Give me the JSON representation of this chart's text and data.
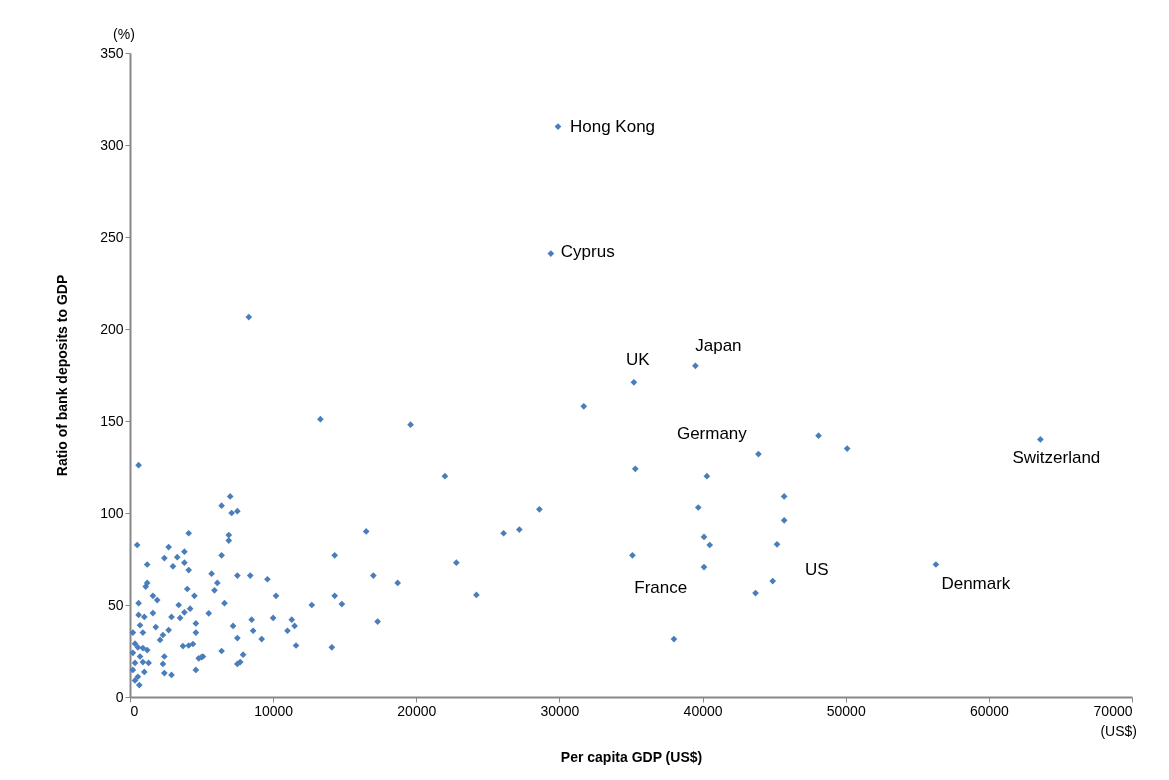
{
  "chart_data": {
    "type": "scatter",
    "xlabel": "Per capita GDP (US$)",
    "ylabel": "Ratio of bank deposits to GDP",
    "xlim": [
      0,
      70000
    ],
    "xticks": [
      0,
      10000,
      20000,
      30000,
      40000,
      50000,
      60000,
      70000
    ],
    "ylim": [
      0,
      350
    ],
    "yticks": [
      0,
      50,
      100,
      150,
      200,
      250,
      300,
      350
    ],
    "grid": false,
    "marker": "diamond",
    "series": [
      {
        "color": "#4a7ebb",
        "x": [
          29900,
          29400,
          35200,
          39500,
          40300,
          40500,
          45200,
          63600,
          56300,
          31700,
          35300,
          43900,
          48100,
          50100,
          45700,
          39700,
          45700,
          40100,
          35100,
          40100,
          44900,
          43700,
          38000,
          13300,
          19600,
          22000,
          28600,
          27200,
          26100,
          16500,
          14300,
          17000,
          18700,
          22800,
          24200,
          12700,
          14300,
          14800,
          17300,
          14100,
          7000,
          6400,
          7100,
          7500,
          6900,
          6900,
          6400,
          5700,
          7500,
          8400,
          9600,
          6100,
          5900,
          10200,
          6600,
          5500,
          7200,
          8500,
          10000,
          11300,
          11500,
          11000,
          8600,
          7500,
          9200,
          11600,
          6400,
          7900,
          7500,
          7700,
          5100,
          8300,
          600,
          500,
          1200,
          1100,
          1200,
          600,
          600,
          700,
          900,
          200,
          1600,
          1900,
          1000,
          1600,
          1800,
          2700,
          2400,
          3300,
          3800,
          3000,
          3800,
          4100,
          4100,
          4000,
          4500,
          3400,
          2900,
          3500,
          3800,
          4200,
          4600,
          4600,
          2300,
          2100,
          2700,
          3700,
          4100,
          4400,
          2400,
          2300,
          2400,
          2900,
          4600,
          4800,
          5000,
          350,
          550,
          900,
          200,
          700,
          1200,
          350,
          900,
          1300,
          200,
          1000,
          550,
          650,
          350
        ],
        "values": [
          310,
          241,
          171,
          180,
          120,
          82.6,
          83,
          140,
          72,
          158,
          124,
          132,
          142,
          135,
          109,
          103,
          96,
          87,
          77,
          70.6,
          63,
          56.5,
          31.5,
          151,
          148,
          120,
          102,
          91,
          89,
          90,
          77,
          66,
          62,
          73,
          55.5,
          50,
          55,
          50.5,
          41,
          27,
          109,
          104,
          100,
          101,
          88,
          85,
          77,
          67,
          66,
          66,
          64,
          62,
          58,
          55,
          51,
          45.5,
          38.6,
          42,
          43,
          42,
          38.6,
          36,
          36,
          32,
          31.5,
          28,
          25,
          23,
          18,
          19,
          22,
          206.5,
          126,
          82.6,
          72,
          60,
          62,
          51,
          44.6,
          39,
          35,
          35,
          55,
          52.7,
          43.5,
          45.6,
          38,
          81.5,
          75.5,
          76,
          79,
          71,
          73,
          89,
          69,
          58.7,
          55,
          50,
          43.5,
          43,
          46,
          48,
          40,
          35,
          33.7,
          31,
          36.4,
          27.7,
          28,
          28.8,
          22,
          18,
          13,
          12,
          14.7,
          21,
          21.7,
          29,
          27,
          26.6,
          24,
          22,
          25.5,
          18.5,
          19,
          18.5,
          14.7,
          13.6,
          11,
          6.5,
          9
        ]
      }
    ],
    "annotations": [
      {
        "text": "Hong Kong",
        "x": 29900,
        "y": 310
      },
      {
        "text": "Cyprus",
        "x": 29400,
        "y": 241
      },
      {
        "text": "UK",
        "x": 35200,
        "y": 171
      },
      {
        "text": "Japan",
        "x": 39500,
        "y": 180
      },
      {
        "text": "Germany",
        "x": 40300,
        "y": 120
      },
      {
        "text": "France",
        "x": 40500,
        "y": 82.6
      },
      {
        "text": "US",
        "x": 45200,
        "y": 83
      },
      {
        "text": "Switzerland",
        "x": 63600,
        "y": 140
      },
      {
        "text": "Denmark",
        "x": 56300,
        "y": 72
      },
      "(%)",
      "(US$)"
    ]
  }
}
